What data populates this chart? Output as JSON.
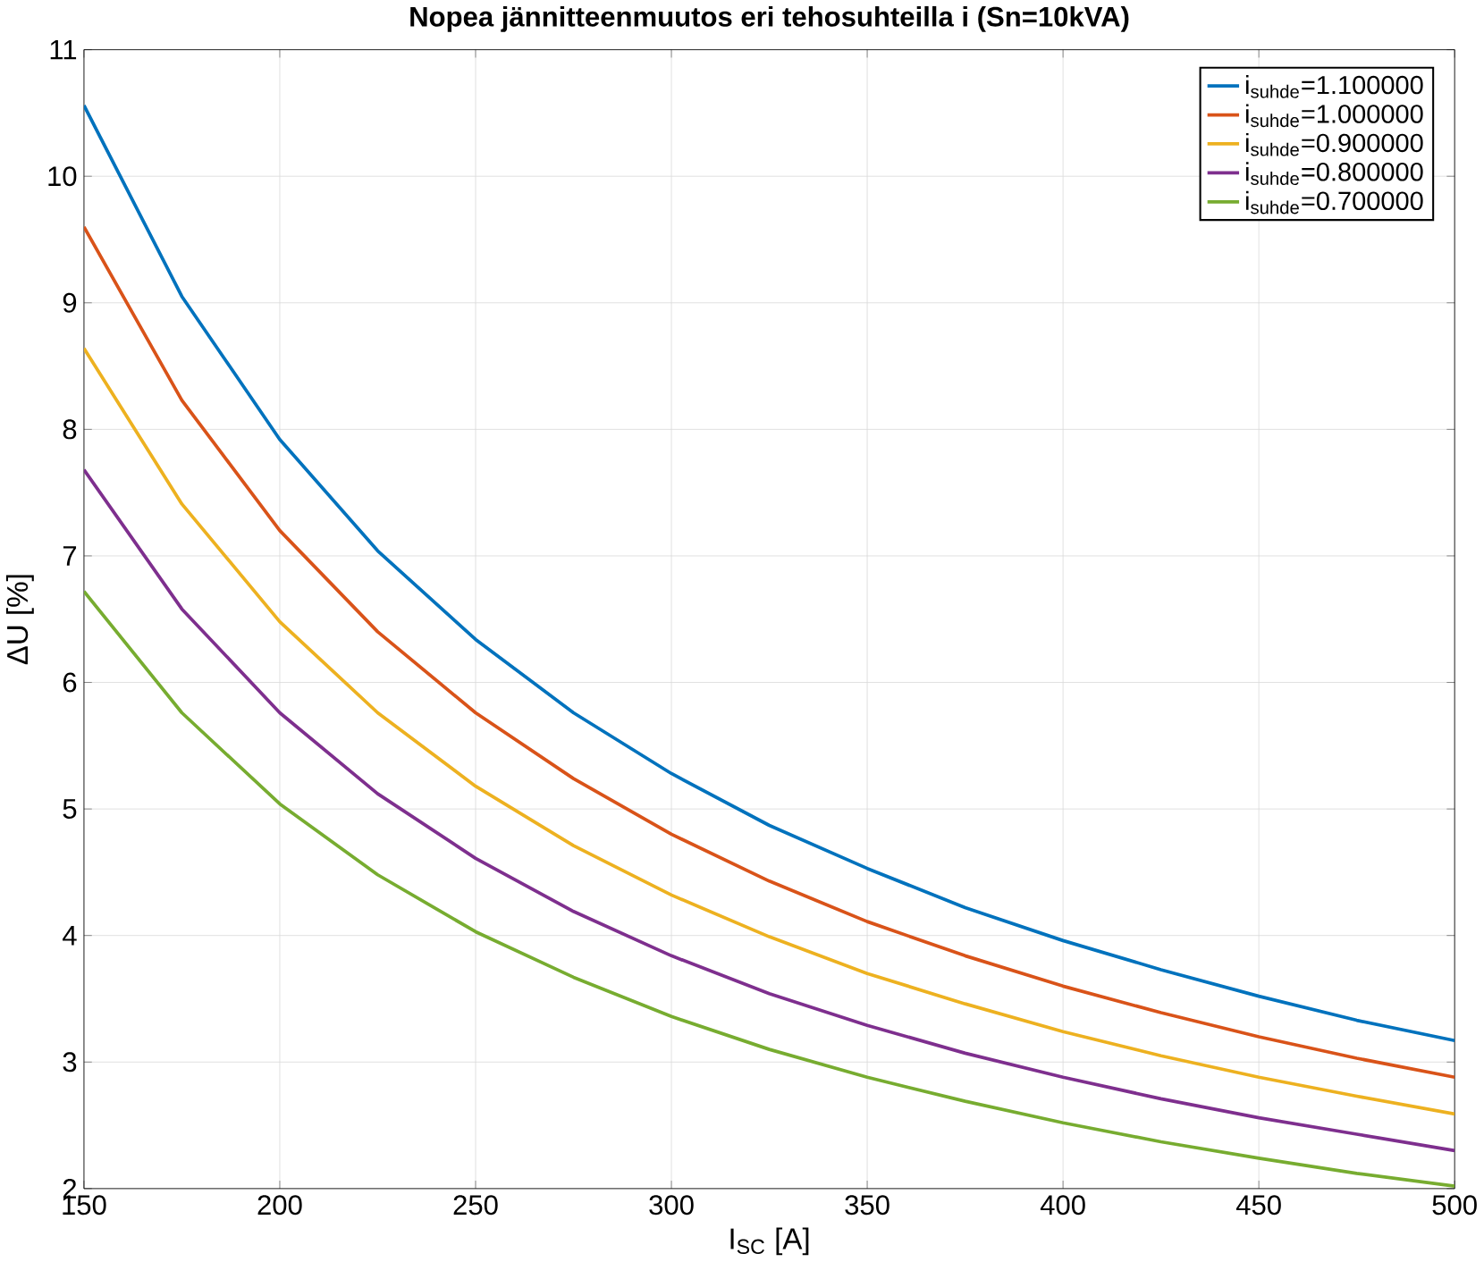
{
  "chart_data": {
    "type": "line",
    "title": "Nopea jännitteenmuutos eri tehosuhteilla i (Sn=10kVA)",
    "xlabel": "I$_{SC}$ [A]",
    "ylabel": "ΔU [%]",
    "x": [
      150,
      175,
      200,
      225,
      250,
      275,
      300,
      325,
      350,
      375,
      400,
      425,
      450,
      475,
      500
    ],
    "series": [
      {
        "name": "i$_{suhde}$=1.100000",
        "color": "#0072bd",
        "values": [
          10.56,
          9.05,
          7.92,
          7.04,
          6.34,
          5.76,
          5.28,
          4.87,
          4.53,
          4.22,
          3.96,
          3.73,
          3.52,
          3.33,
          3.17
        ]
      },
      {
        "name": "i$_{suhde}$=1.000000",
        "color": "#d95319",
        "values": [
          9.6,
          8.23,
          7.2,
          6.4,
          5.76,
          5.24,
          4.8,
          4.43,
          4.11,
          3.84,
          3.6,
          3.39,
          3.2,
          3.03,
          2.88
        ]
      },
      {
        "name": "i$_{suhde}$=0.900000",
        "color": "#edb120",
        "values": [
          8.64,
          7.41,
          6.48,
          5.76,
          5.18,
          4.71,
          4.32,
          3.99,
          3.7,
          3.46,
          3.24,
          3.05,
          2.88,
          2.73,
          2.59
        ]
      },
      {
        "name": "i$_{suhde}$=0.800000",
        "color": "#7e2f8e",
        "values": [
          7.68,
          6.58,
          5.76,
          5.12,
          4.61,
          4.19,
          3.84,
          3.54,
          3.29,
          3.07,
          2.88,
          2.71,
          2.56,
          2.43,
          2.3
        ]
      },
      {
        "name": "i$_{suhde}$=0.700000",
        "color": "#77ac30",
        "values": [
          6.72,
          5.76,
          5.04,
          4.48,
          4.03,
          3.67,
          3.36,
          3.1,
          2.88,
          2.69,
          2.52,
          2.37,
          2.24,
          2.12,
          2.02
        ]
      }
    ],
    "xlim": [
      150,
      500
    ],
    "ylim": [
      2,
      11
    ],
    "xticks": [
      150,
      200,
      250,
      300,
      350,
      400,
      450,
      500
    ],
    "yticks": [
      2,
      3,
      4,
      5,
      6,
      7,
      8,
      9,
      10,
      11
    ],
    "grid": true,
    "legend": "top right",
    "line_style": "solid",
    "marker": "none"
  }
}
